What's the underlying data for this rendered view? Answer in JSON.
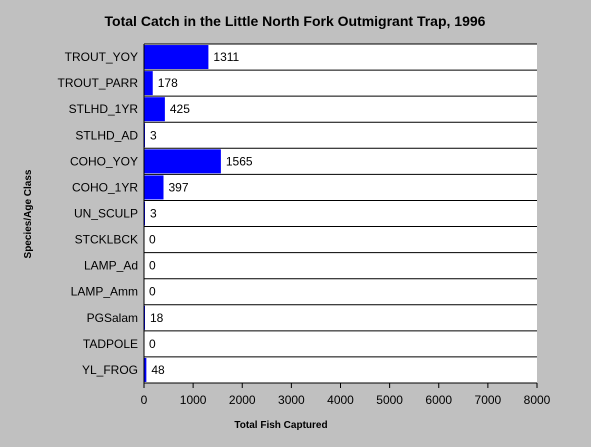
{
  "chart_data": {
    "type": "bar",
    "orientation": "horizontal",
    "title": "Total Catch in the Little North Fork Outmigrant Trap, 1996",
    "xlabel": "Total Fish Captured",
    "ylabel": "Species/Age Class",
    "categories": [
      "TROUT_YOY",
      "TROUT_PARR",
      "STLHD_1YR",
      "STLHD_AD",
      "COHO_YOY",
      "COHO_1YR",
      "UN_SCULP",
      "STCKLBCK",
      "LAMP_Ad",
      "LAMP_Amm",
      "PGSalam",
      "TADPOLE",
      "YL_FROG"
    ],
    "values": [
      1311,
      178,
      425,
      3,
      1565,
      397,
      3,
      0,
      0,
      0,
      18,
      0,
      48
    ],
    "data_labels": [
      "1311",
      "178",
      "425",
      "3",
      "1565",
      "397",
      "3",
      "0",
      "0",
      "0",
      "18",
      "0",
      "48"
    ],
    "xlim": [
      0,
      8000
    ],
    "xticks": [
      0,
      1000,
      2000,
      3000,
      4000,
      5000,
      6000,
      7000,
      8000
    ],
    "xtick_labels": [
      "0",
      "1000",
      "2000",
      "3000",
      "4000",
      "5000",
      "6000",
      "7000",
      "8000"
    ],
    "grid": "horizontal lines between categories",
    "legend": "none",
    "colors": {
      "background": "#c0c0c0",
      "plot_background": "#ffffff",
      "bar": "#0000ff",
      "grid": "#000000"
    }
  }
}
